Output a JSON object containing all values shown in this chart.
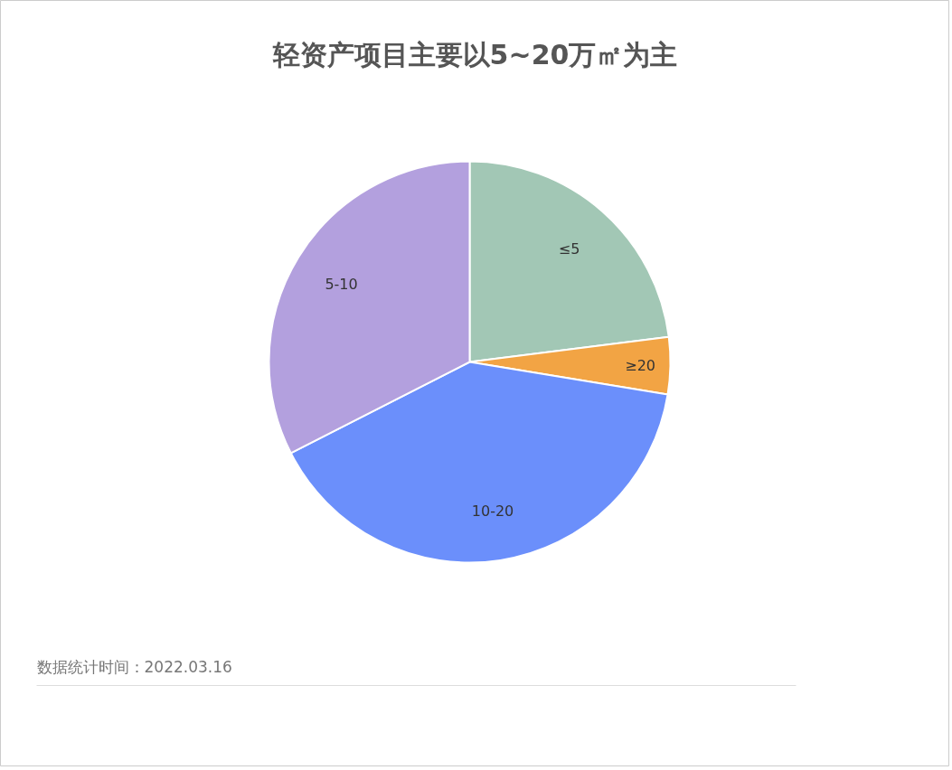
{
  "chart_data": {
    "type": "pie",
    "title": "轻资产项目主要以5~20万㎡为主",
    "categories": [
      "≤5",
      "≥20",
      "10-20",
      "5-10"
    ],
    "values": [
      23.0,
      4.6,
      39.9,
      32.5
    ],
    "colors": [
      "#a2c7b5",
      "#f2a444",
      "#6b8ffb",
      "#b3a0de"
    ],
    "annotations": [
      "数据统计时间：2022.03.16"
    ]
  }
}
